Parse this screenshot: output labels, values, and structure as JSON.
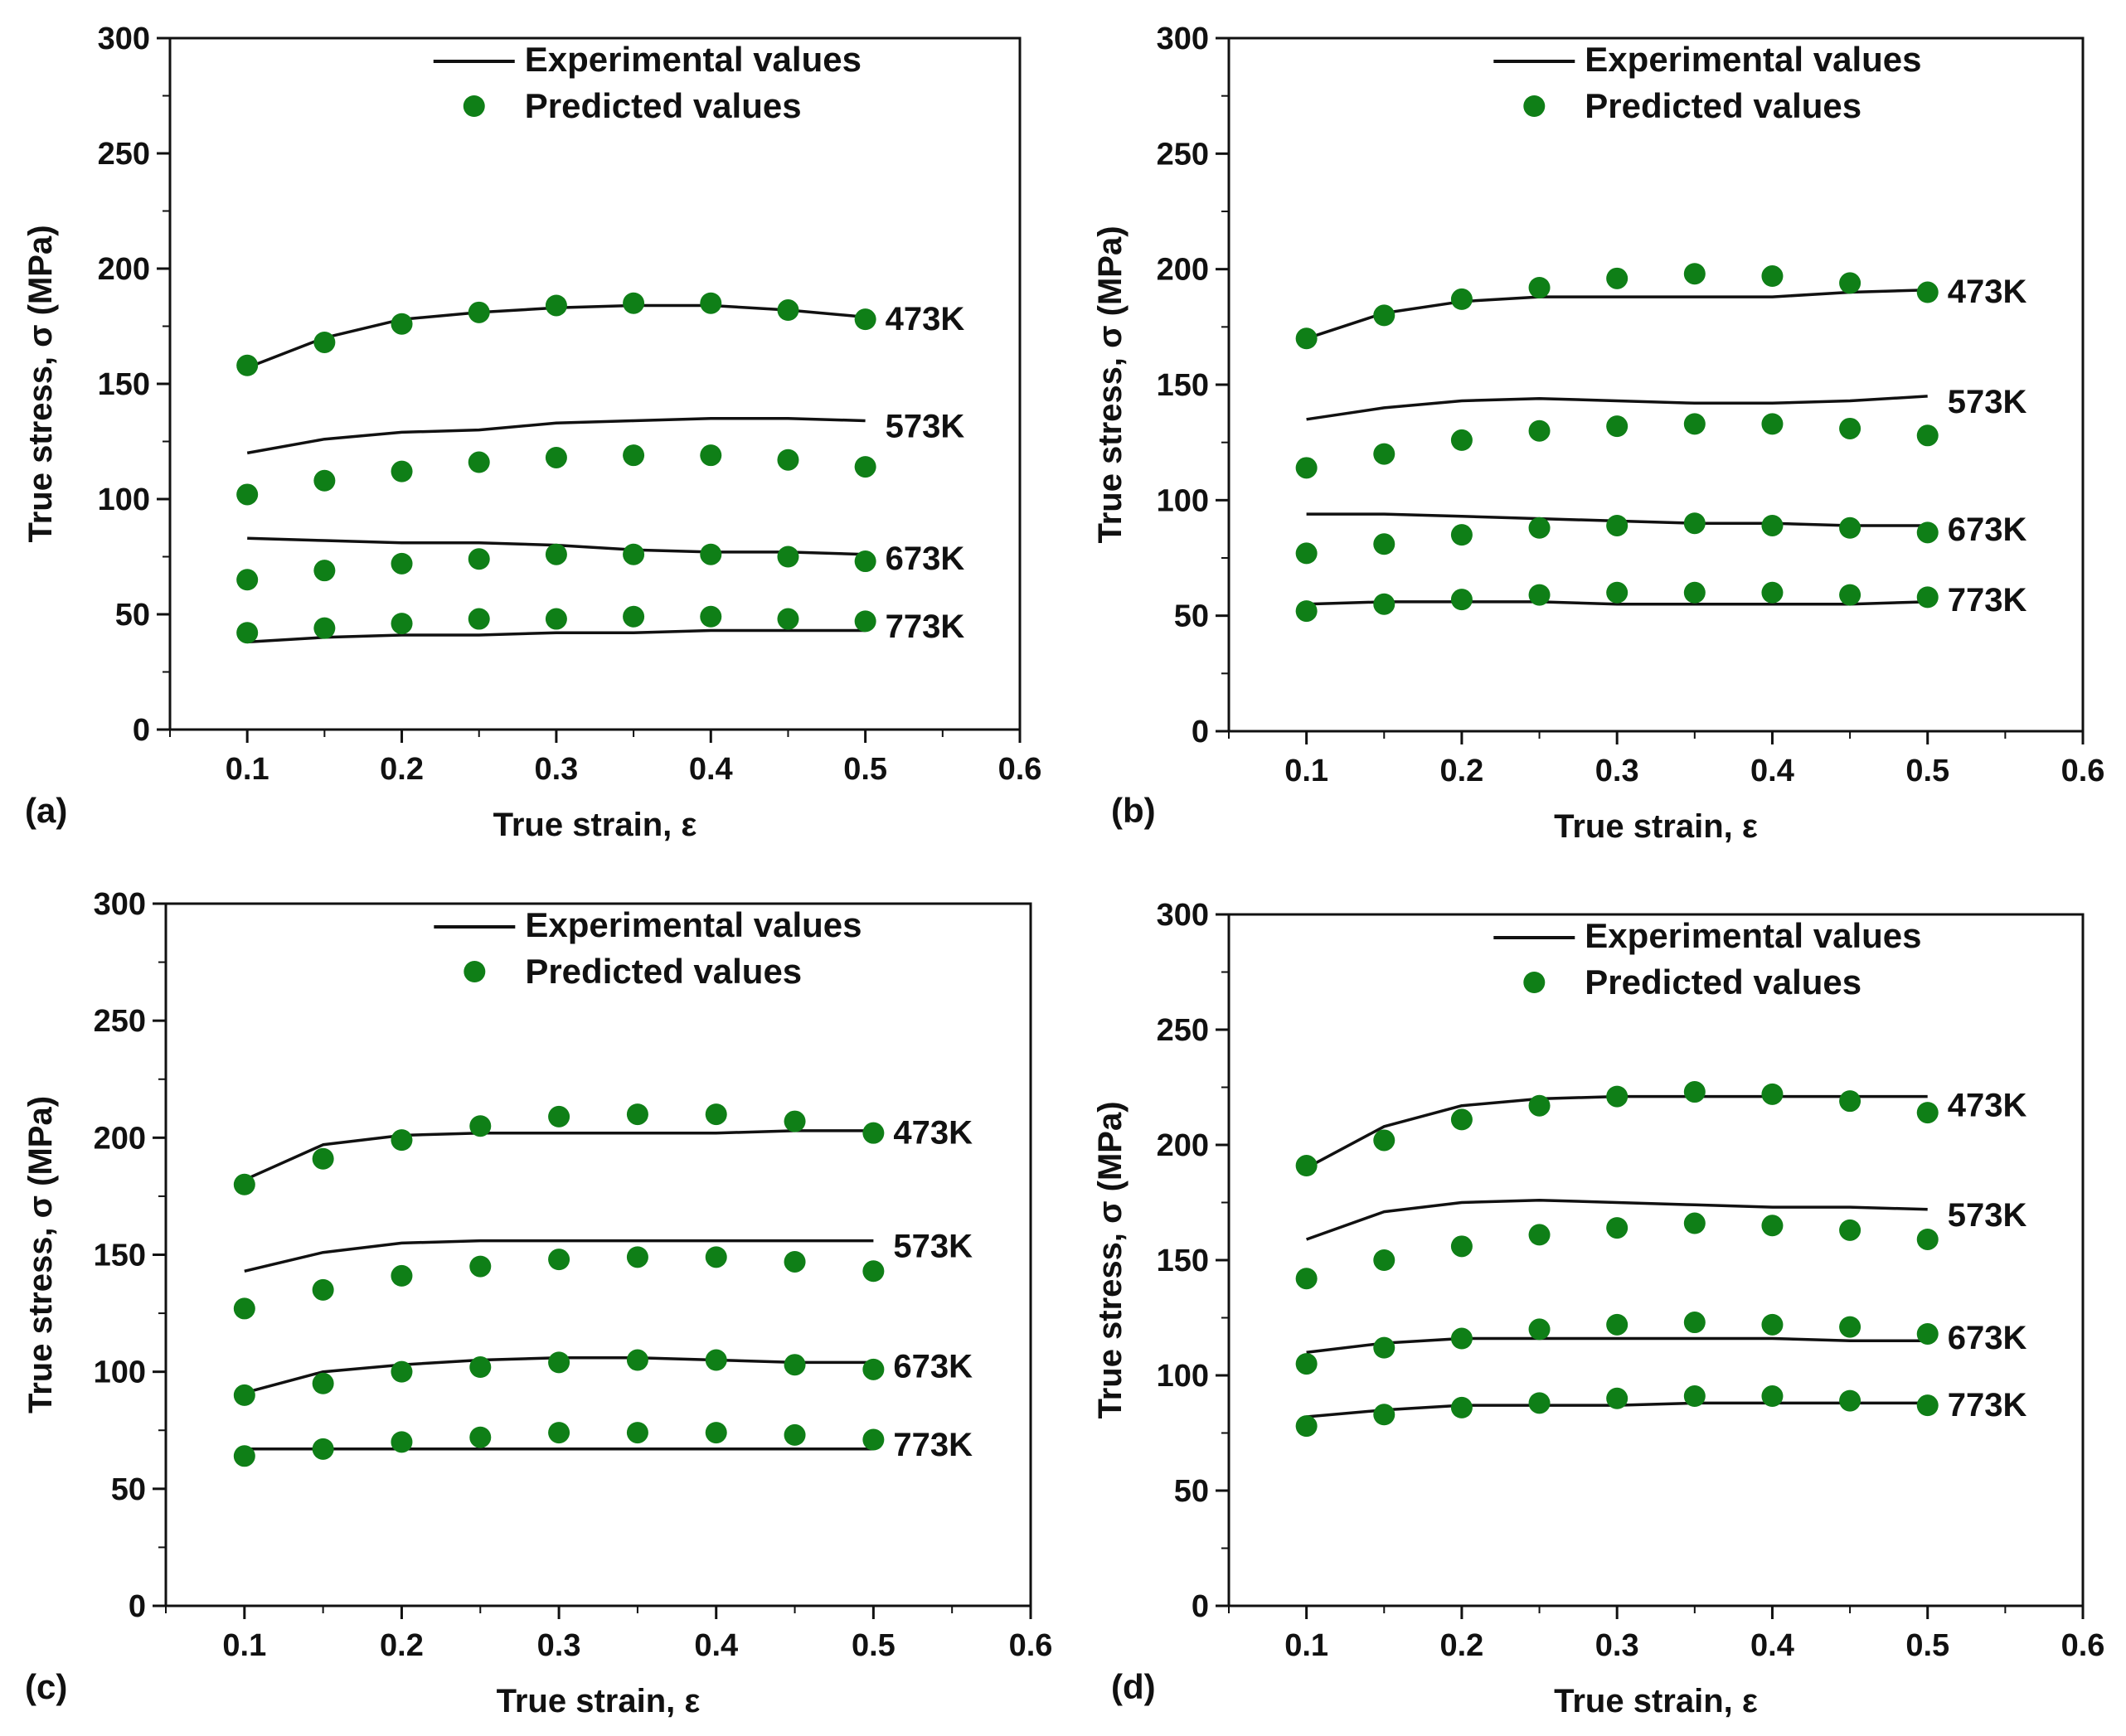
{
  "colors": {
    "marker": "#0f7f17",
    "line": "#111111",
    "axis": "#111111"
  },
  "chart_data": [
    {
      "type": "line+scatter",
      "panel": "(a)",
      "xlabel": "True strain, ε",
      "ylabel": "True stress, σ (MPa)",
      "xlim": [
        0.05,
        0.6
      ],
      "ylim": [
        0,
        300
      ],
      "xticks": [
        0.1,
        0.2,
        0.3,
        0.4,
        0.5,
        0.6
      ],
      "xtick_labels": [
        "0.1",
        "0.2",
        "0.3",
        "0.4",
        "0.5",
        "0.6"
      ],
      "yticks": [
        0,
        50,
        100,
        150,
        200,
        250,
        300
      ],
      "ytick_labels": [
        "0",
        "50",
        "100",
        "150",
        "200",
        "250",
        "300"
      ],
      "legend": {
        "line": "Experimental values",
        "marker": "Predicted values",
        "position": "top-center"
      },
      "x": [
        0.1,
        0.15,
        0.2,
        0.25,
        0.3,
        0.35,
        0.4,
        0.45,
        0.5
      ],
      "series": [
        {
          "name": "473K",
          "experimental": [
            157,
            170,
            178,
            181,
            183,
            184,
            184,
            182,
            179
          ],
          "predicted": [
            158,
            168,
            176,
            181,
            184,
            185,
            185,
            182,
            178
          ]
        },
        {
          "name": "573K",
          "experimental": [
            120,
            126,
            129,
            130,
            133,
            134,
            135,
            135,
            134
          ],
          "predicted": [
            102,
            108,
            112,
            116,
            118,
            119,
            119,
            117,
            114
          ]
        },
        {
          "name": "673K",
          "experimental": [
            83,
            82,
            81,
            81,
            80,
            78,
            77,
            77,
            76
          ],
          "predicted": [
            65,
            69,
            72,
            74,
            76,
            76,
            76,
            75,
            73
          ]
        },
        {
          "name": "773K",
          "experimental": [
            38,
            40,
            41,
            41,
            42,
            42,
            43,
            43,
            43
          ],
          "predicted": [
            42,
            44,
            46,
            48,
            48,
            49,
            49,
            48,
            47
          ]
        }
      ]
    },
    {
      "type": "line+scatter",
      "panel": "(b)",
      "xlabel": "True strain, ε",
      "ylabel": "True stress, σ (MPa)",
      "xlim": [
        0.05,
        0.6
      ],
      "ylim": [
        0,
        300
      ],
      "xticks": [
        0.1,
        0.2,
        0.3,
        0.4,
        0.5,
        0.6
      ],
      "xtick_labels": [
        "0.1",
        "0.2",
        "0.3",
        "0.4",
        "0.5",
        "0.6"
      ],
      "yticks": [
        0,
        50,
        100,
        150,
        200,
        250,
        300
      ],
      "ytick_labels": [
        "0",
        "50",
        "100",
        "150",
        "200",
        "250",
        "300"
      ],
      "legend": {
        "line": "Experimental values",
        "marker": "Predicted values",
        "position": "top-center"
      },
      "x": [
        0.1,
        0.15,
        0.2,
        0.25,
        0.3,
        0.35,
        0.4,
        0.45,
        0.5
      ],
      "series": [
        {
          "name": "473K",
          "experimental": [
            170,
            181,
            186,
            188,
            188,
            188,
            188,
            190,
            191
          ],
          "predicted": [
            170,
            180,
            187,
            192,
            196,
            198,
            197,
            194,
            190
          ]
        },
        {
          "name": "573K",
          "experimental": [
            135,
            140,
            143,
            144,
            143,
            142,
            142,
            143,
            145
          ],
          "predicted": [
            114,
            120,
            126,
            130,
            132,
            133,
            133,
            131,
            128
          ]
        },
        {
          "name": "673K",
          "experimental": [
            94,
            94,
            93,
            92,
            91,
            90,
            90,
            89,
            89
          ],
          "predicted": [
            77,
            81,
            85,
            88,
            89,
            90,
            89,
            88,
            86
          ]
        },
        {
          "name": "773K",
          "experimental": [
            55,
            56,
            56,
            56,
            55,
            55,
            55,
            55,
            56
          ],
          "predicted": [
            52,
            55,
            57,
            59,
            60,
            60,
            60,
            59,
            58
          ]
        }
      ]
    },
    {
      "type": "line+scatter",
      "panel": "(c)",
      "xlabel": "True strain, ε",
      "ylabel": "True stress, σ (MPa)",
      "xlim": [
        0.05,
        0.6
      ],
      "ylim": [
        0,
        300
      ],
      "xticks": [
        0.1,
        0.2,
        0.3,
        0.4,
        0.5,
        0.6
      ],
      "xtick_labels": [
        "0.1",
        "0.2",
        "0.3",
        "0.4",
        "0.5",
        "0.6"
      ],
      "yticks": [
        0,
        50,
        100,
        150,
        200,
        250,
        300
      ],
      "ytick_labels": [
        "0",
        "50",
        "100",
        "150",
        "200",
        "250",
        "300"
      ],
      "legend": {
        "line": "Experimental values",
        "marker": "Predicted values",
        "position": "top-center"
      },
      "x": [
        0.1,
        0.15,
        0.2,
        0.25,
        0.3,
        0.35,
        0.4,
        0.45,
        0.5
      ],
      "series": [
        {
          "name": "473K",
          "experimental": [
            182,
            197,
            201,
            202,
            202,
            202,
            202,
            203,
            203
          ],
          "predicted": [
            180,
            191,
            199,
            205,
            209,
            210,
            210,
            207,
            202
          ]
        },
        {
          "name": "573K",
          "experimental": [
            143,
            151,
            155,
            156,
            156,
            156,
            156,
            156,
            156
          ],
          "predicted": [
            127,
            135,
            141,
            145,
            148,
            149,
            149,
            147,
            143
          ]
        },
        {
          "name": "673K",
          "experimental": [
            91,
            100,
            103,
            105,
            106,
            106,
            105,
            104,
            104
          ],
          "predicted": [
            90,
            95,
            100,
            102,
            104,
            105,
            105,
            103,
            101
          ]
        },
        {
          "name": "773K",
          "experimental": [
            67,
            67,
            67,
            67,
            67,
            67,
            67,
            67,
            67
          ],
          "predicted": [
            64,
            67,
            70,
            72,
            74,
            74,
            74,
            73,
            71
          ]
        }
      ]
    },
    {
      "type": "line+scatter",
      "panel": "(d)",
      "xlabel": "True strain, ε",
      "ylabel": "True stress, σ (MPa)",
      "xlim": [
        0.05,
        0.6
      ],
      "ylim": [
        0,
        300
      ],
      "xticks": [
        0.1,
        0.2,
        0.3,
        0.4,
        0.5,
        0.6
      ],
      "xtick_labels": [
        "0.1",
        "0.2",
        "0.3",
        "0.4",
        "0.5",
        "0.6"
      ],
      "yticks": [
        0,
        50,
        100,
        150,
        200,
        250,
        300
      ],
      "ytick_labels": [
        "0",
        "50",
        "100",
        "150",
        "200",
        "250",
        "300"
      ],
      "legend": {
        "line": "Experimental values",
        "marker": "Predicted values",
        "position": "top-center"
      },
      "x": [
        0.1,
        0.15,
        0.2,
        0.25,
        0.3,
        0.35,
        0.4,
        0.45,
        0.5
      ],
      "series": [
        {
          "name": "473K",
          "experimental": [
            190,
            208,
            217,
            220,
            221,
            221,
            221,
            221,
            221
          ],
          "predicted": [
            191,
            202,
            211,
            217,
            221,
            223,
            222,
            219,
            214
          ]
        },
        {
          "name": "573K",
          "experimental": [
            159,
            171,
            175,
            176,
            175,
            174,
            173,
            173,
            172
          ],
          "predicted": [
            142,
            150,
            156,
            161,
            164,
            166,
            165,
            163,
            159
          ]
        },
        {
          "name": "673K",
          "experimental": [
            110,
            114,
            116,
            116,
            116,
            116,
            116,
            115,
            115
          ],
          "predicted": [
            105,
            112,
            116,
            120,
            122,
            123,
            122,
            121,
            118
          ]
        },
        {
          "name": "773K",
          "experimental": [
            82,
            85,
            87,
            87,
            87,
            88,
            88,
            88,
            88
          ],
          "predicted": [
            78,
            83,
            86,
            88,
            90,
            91,
            91,
            89,
            87
          ]
        }
      ]
    }
  ]
}
